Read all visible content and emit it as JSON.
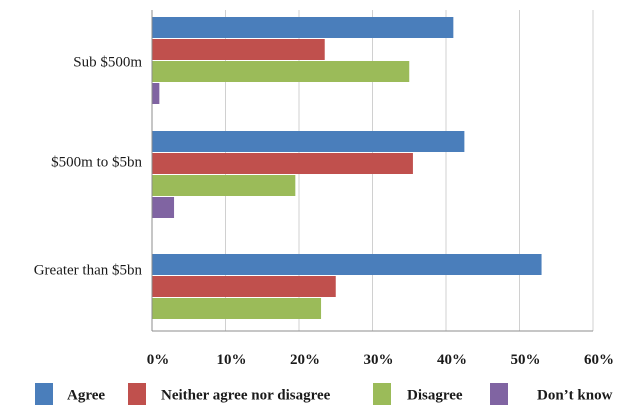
{
  "chart_data": {
    "type": "bar",
    "orientation": "horizontal",
    "categories": [
      "Sub $500m",
      "$500m to $5bn",
      "Greater than $5bn"
    ],
    "series": [
      {
        "name": "Agree",
        "color": "#4a7ebb",
        "values": [
          41,
          42.5,
          53
        ]
      },
      {
        "name": "Neither agree nor disagree",
        "color": "#c0504d",
        "values": [
          23.5,
          35.5,
          25
        ]
      },
      {
        "name": "Disagree",
        "color": "#9bbb59",
        "values": [
          35,
          19.5,
          23
        ]
      },
      {
        "name": "Don’t know",
        "color": "#8064a2",
        "values": [
          1,
          3,
          0
        ]
      }
    ],
    "x_ticks": [
      "0%",
      "10%",
      "20%",
      "30%",
      "40%",
      "50%",
      "60%"
    ],
    "xlim": [
      0,
      60
    ],
    "grid": true,
    "legend_position": "bottom",
    "title": "",
    "xlabel": "",
    "ylabel": ""
  }
}
